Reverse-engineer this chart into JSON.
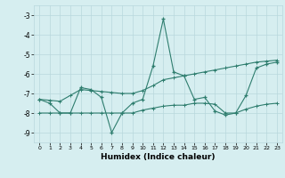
{
  "x": [
    0,
    1,
    2,
    3,
    4,
    5,
    6,
    7,
    8,
    9,
    10,
    11,
    12,
    13,
    14,
    15,
    16,
    17,
    18,
    19,
    20,
    21,
    22,
    23
  ],
  "y_main": [
    -7.3,
    -7.5,
    -8.0,
    -8.0,
    -6.7,
    -6.8,
    -7.2,
    -9.0,
    -8.0,
    -7.5,
    -7.3,
    -5.6,
    -3.2,
    -5.9,
    -6.1,
    -7.3,
    -7.2,
    -7.9,
    -8.1,
    -8.0,
    -7.1,
    -5.7,
    -5.5,
    -5.4
  ],
  "y_upper": [
    -7.3,
    -7.35,
    -7.4,
    -7.1,
    -6.8,
    -6.85,
    -6.9,
    -6.95,
    -7.0,
    -7.0,
    -6.85,
    -6.6,
    -6.3,
    -6.2,
    -6.1,
    -6.0,
    -5.9,
    -5.8,
    -5.7,
    -5.6,
    -5.5,
    -5.4,
    -5.35,
    -5.3
  ],
  "y_lower": [
    -8.0,
    -8.0,
    -8.0,
    -8.0,
    -8.0,
    -8.0,
    -8.0,
    -8.0,
    -8.0,
    -8.0,
    -7.85,
    -7.75,
    -7.65,
    -7.6,
    -7.6,
    -7.5,
    -7.5,
    -7.55,
    -8.0,
    -8.0,
    -7.8,
    -7.65,
    -7.55,
    -7.5
  ],
  "color": "#2e7d6e",
  "bg_color": "#d6eef0",
  "grid_color": "#b8d8dc",
  "xlabel": "Humidex (Indice chaleur)",
  "ylim": [
    -9.5,
    -2.5
  ],
  "xlim": [
    -0.5,
    23.5
  ],
  "xticks": [
    0,
    1,
    2,
    3,
    4,
    5,
    6,
    7,
    8,
    9,
    10,
    11,
    12,
    13,
    14,
    15,
    16,
    17,
    18,
    19,
    20,
    21,
    22,
    23
  ],
  "yticks": [
    -9,
    -8,
    -7,
    -6,
    -5,
    -4,
    -3
  ]
}
